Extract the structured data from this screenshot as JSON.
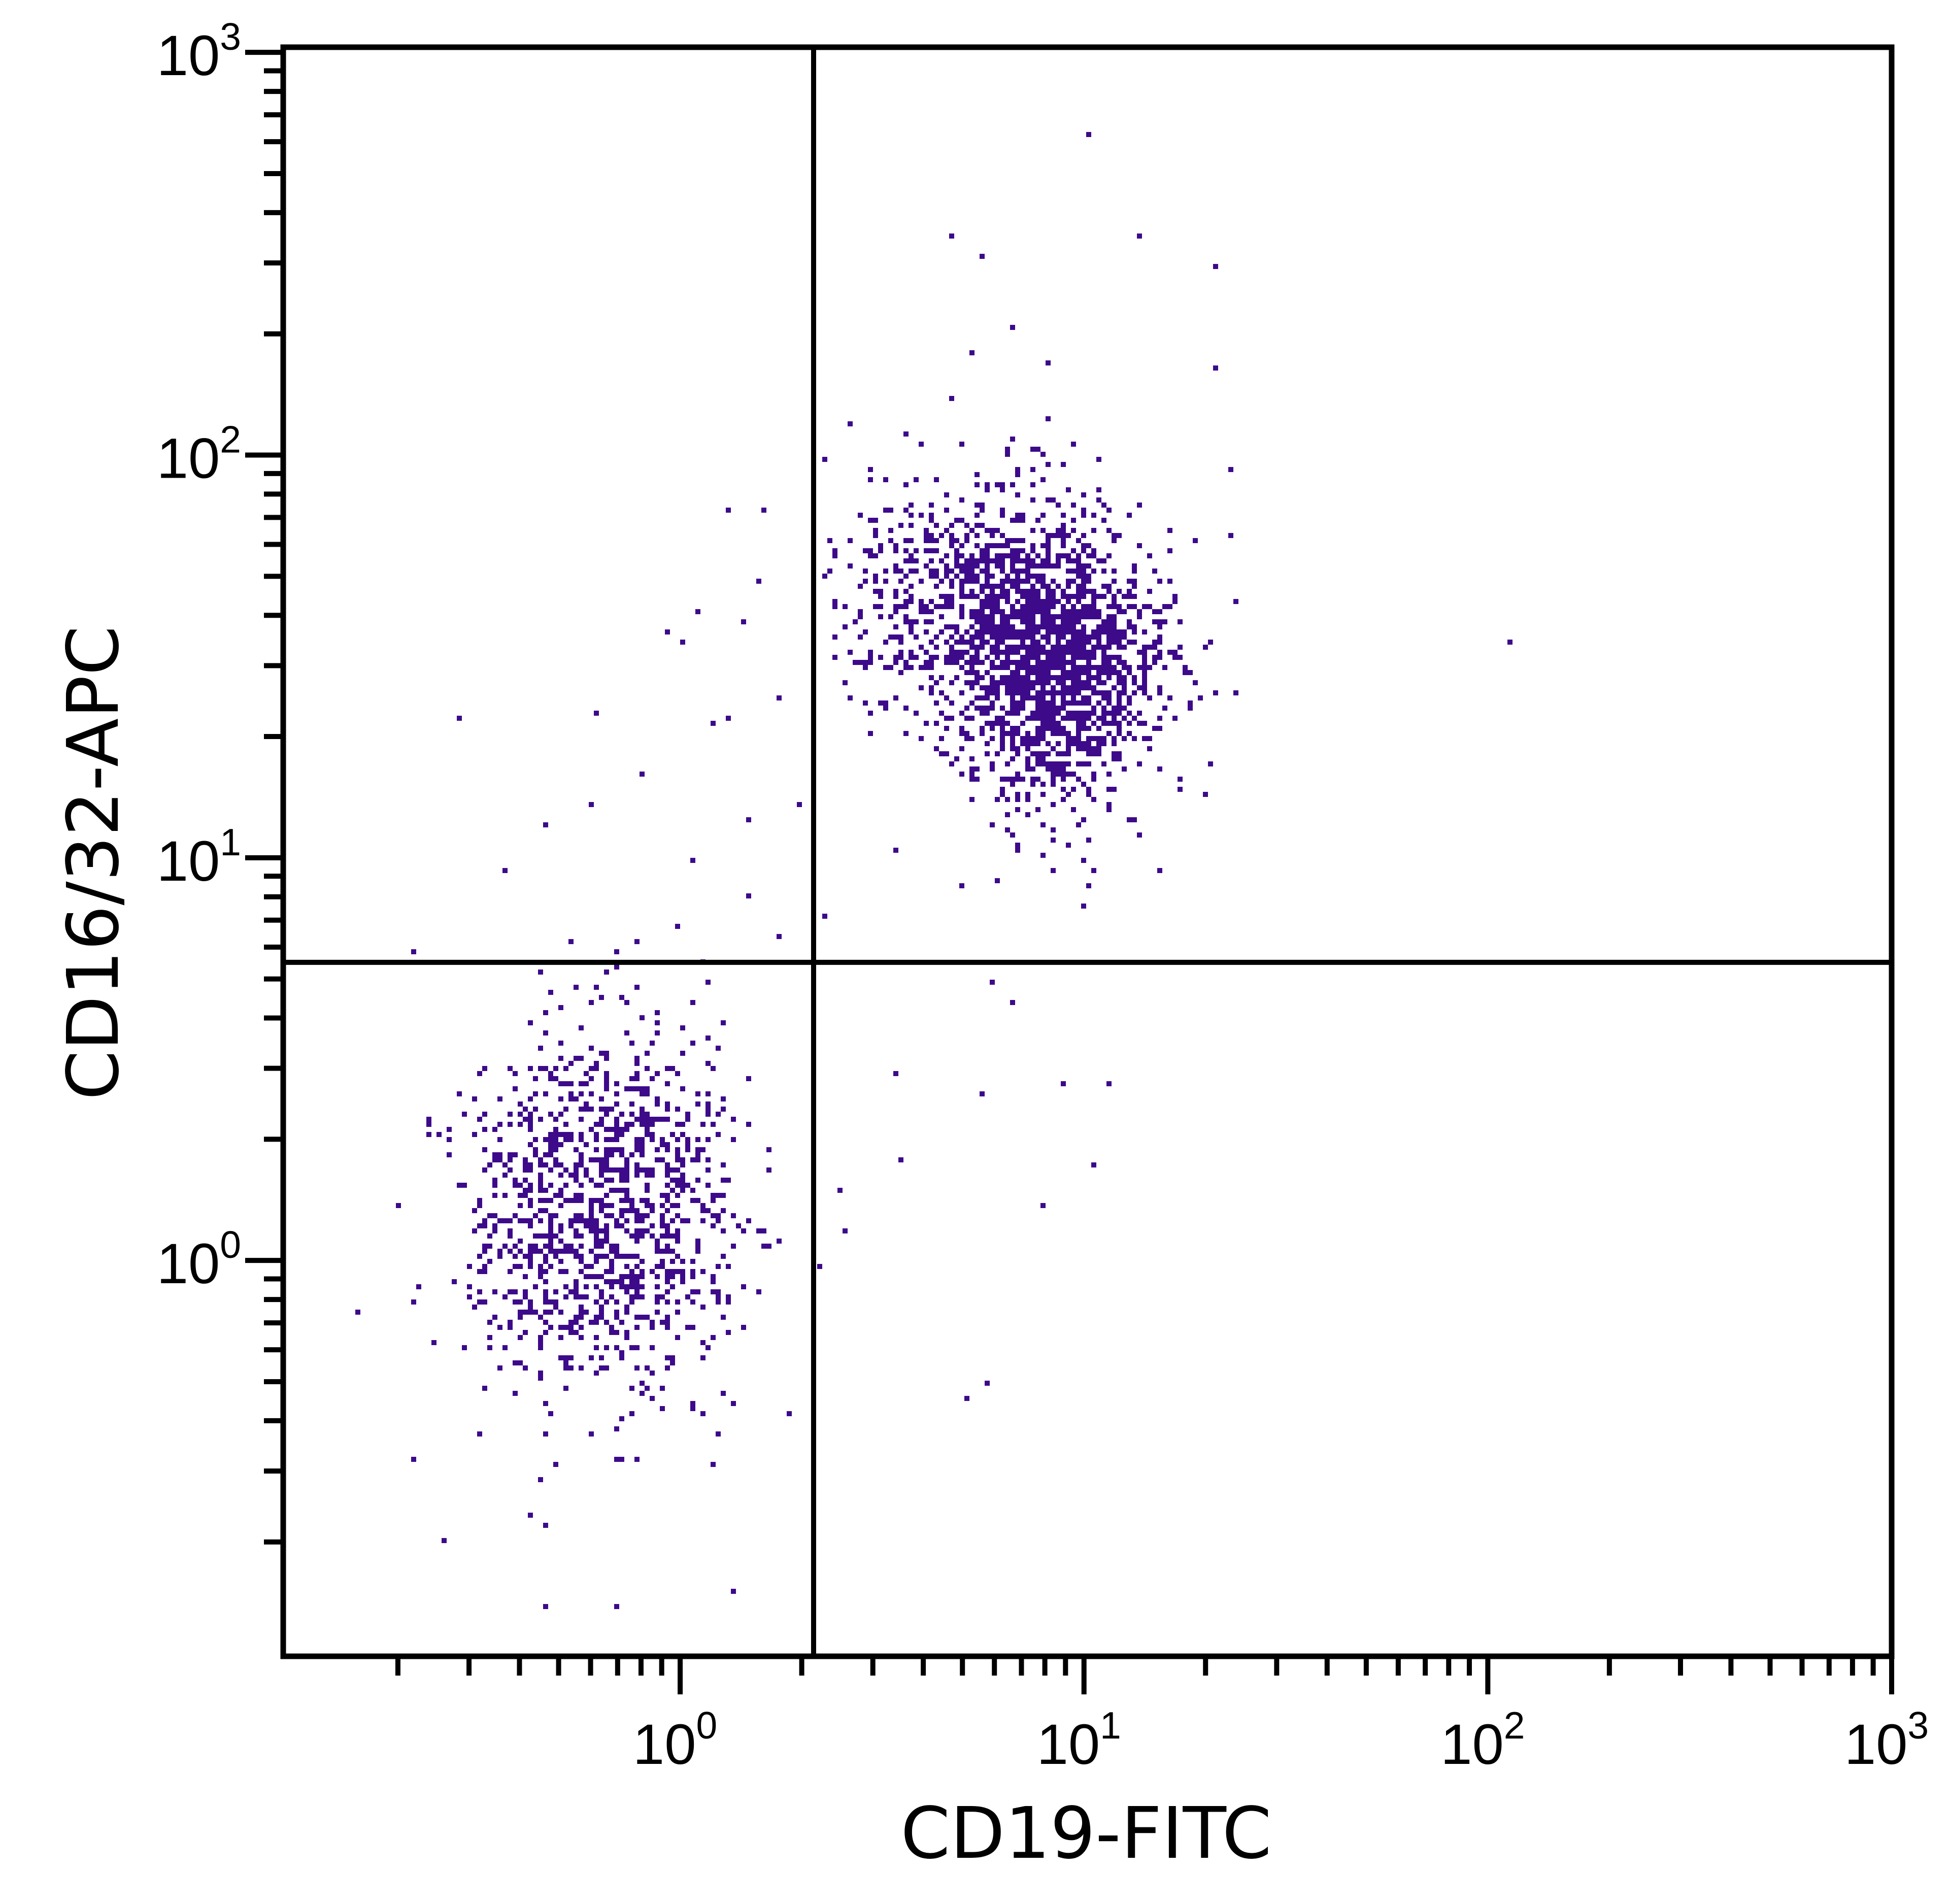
{
  "chart_data": {
    "type": "scatter",
    "title": "",
    "xlabel": "CD19-FITC",
    "ylabel": "CD16/32-APC",
    "xscale": "log",
    "yscale": "log",
    "xlim": [
      0.104,
      1000
    ],
    "ylim": [
      0.104,
      1030
    ],
    "x_ticks": [
      {
        "base": "10",
        "exp": "0",
        "value": 1
      },
      {
        "base": "10",
        "exp": "1",
        "value": 10
      },
      {
        "base": "10",
        "exp": "2",
        "value": 100
      },
      {
        "base": "10",
        "exp": "3",
        "value": 1000
      }
    ],
    "y_ticks": [
      {
        "base": "10",
        "exp": "0",
        "value": 1
      },
      {
        "base": "10",
        "exp": "1",
        "value": 10
      },
      {
        "base": "10",
        "exp": "2",
        "value": 100
      },
      {
        "base": "10",
        "exp": "3",
        "value": 1000
      }
    ],
    "grid": false,
    "point_color": "#3d0a8a",
    "quadrant_gates": {
      "x": 2.14,
      "y": 5.5
    },
    "populations": [
      {
        "center": [
          8.5,
          30
        ],
        "log_sd": [
          0.13,
          0.17
        ],
        "count": 1500,
        "x_min": 2.2
      },
      {
        "center": [
          5.0,
          45
        ],
        "log_sd": [
          0.16,
          0.15
        ],
        "count": 600,
        "x_min": 2.2
      },
      {
        "center": [
          0.65,
          1.3
        ],
        "log_sd": [
          0.17,
          0.22
        ],
        "count": 1100,
        "x_max": 1.9
      }
    ],
    "points": [
      [
        10.4,
        620
      ],
      [
        4.7,
        350
      ],
      [
        13.7,
        350
      ],
      [
        21.4,
        290
      ],
      [
        5.6,
        310
      ],
      [
        113,
        34
      ],
      [
        0.16,
        0.75
      ],
      [
        0.28,
        22.3
      ],
      [
        0.69,
        0.14
      ],
      [
        0.46,
        0.14
      ],
      [
        5.1,
        0.45
      ],
      [
        5.8,
        0.49
      ],
      [
        8.0,
        1.35
      ],
      [
        10.6,
        1.74
      ],
      [
        9.0,
        2.75
      ],
      [
        11.6,
        2.75
      ],
      [
        3.4,
        2.87
      ],
      [
        5.6,
        2.56
      ],
      [
        3.5,
        1.78
      ],
      [
        6.0,
        4.9
      ],
      [
        6.7,
        4.4
      ],
      [
        2.5,
        1.5
      ],
      [
        2.55,
        1.2
      ],
      [
        2.2,
        0.96
      ],
      [
        10,
        7.6
      ],
      [
        2.3,
        7.2
      ],
      [
        1.3,
        73
      ],
      [
        1.6,
        73
      ],
      [
        1.12,
        41
      ],
      [
        0.93,
        36
      ],
      [
        1.02,
        34.5
      ],
      [
        1.44,
        39
      ],
      [
        1.78,
        25
      ],
      [
        1.22,
        21.8
      ],
      [
        1.33,
        22
      ],
      [
        1.56,
        49
      ],
      [
        0.62,
        23
      ],
      [
        17.2,
        14.6
      ],
      [
        20.3,
        34
      ],
      [
        21.3,
        166
      ],
      [
        22.8,
        91
      ],
      [
        23.5,
        43
      ],
      [
        21.4,
        26
      ],
      [
        22.8,
        63
      ],
      [
        2.63,
        121
      ],
      [
        4.7,
        140
      ],
      [
        5.3,
        178
      ],
      [
        6.6,
        207
      ],
      [
        0.26,
        0.2
      ],
      [
        1.37,
        0.15
      ],
      [
        0.47,
        0.22
      ],
      [
        0.22,
        0.32
      ],
      [
        0.22,
        5.9
      ],
      [
        0.37,
        9.4
      ],
      [
        0.47,
        11.9
      ],
      [
        0.6,
        13.7
      ],
      [
        0.8,
        16.1
      ],
      [
        2.0,
        13.6
      ],
      [
        1.48,
        12.5
      ],
      [
        1.07,
        9.9
      ],
      [
        1.46,
        8.1
      ],
      [
        1.76,
        6.3
      ],
      [
        0.98,
        6.7
      ],
      [
        6.9,
        13.2
      ],
      [
        5.0,
        8.4
      ],
      [
        8.3,
        9.2
      ],
      [
        6.1,
        8.8
      ],
      [
        3.4,
        10.4
      ],
      [
        2.27,
        97
      ],
      [
        3.9,
        105
      ],
      [
        8.2,
        170
      ]
    ]
  }
}
